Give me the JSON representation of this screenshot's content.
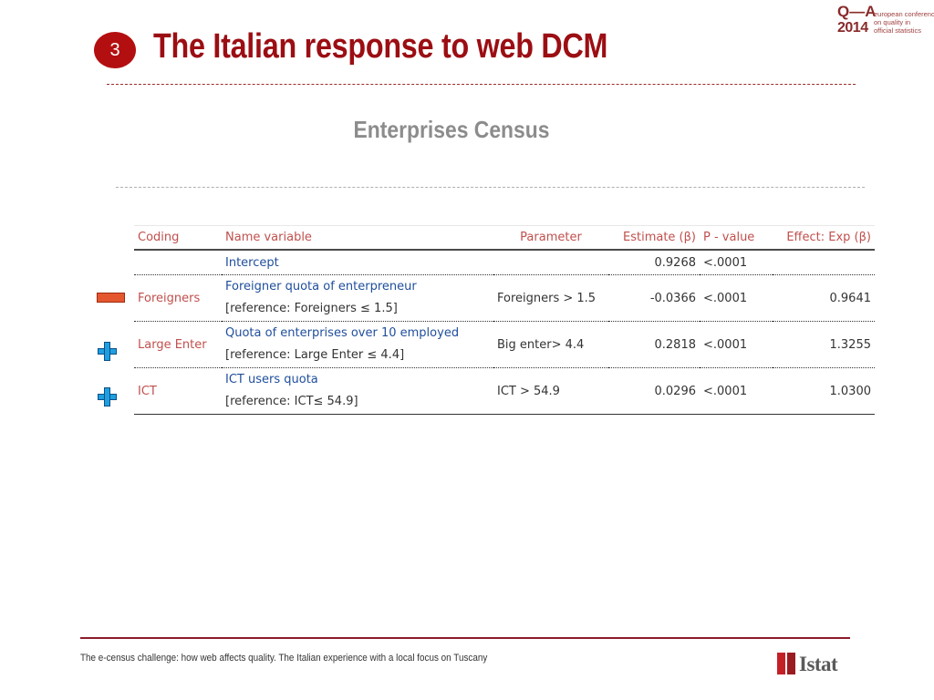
{
  "slide": {
    "number": "3",
    "title": "The Italian response to web DCM",
    "subtitle": "Enterprises Census"
  },
  "logo": {
    "qa": "Q—A",
    "year": "2014",
    "lines": [
      "european conference",
      "on quality in",
      "official statistics"
    ]
  },
  "table": {
    "headers": {
      "coding": "Coding",
      "name_variable": "Name variable",
      "parameter": "Parameter",
      "estimate": "Estimate (β)",
      "p_value": "P - value",
      "effect": "Effect: Exp (β)"
    },
    "rows": [
      {
        "coding": "",
        "name": "Intercept",
        "reference": "",
        "parameter": "",
        "estimate": "0.9268",
        "p_value": "<.0001",
        "effect": "",
        "sign": ""
      },
      {
        "coding": "Foreigners",
        "name": "Foreigner quota of enterpreneur",
        "reference": "[reference: Foreigners ≤ 1.5]",
        "parameter": "Foreigners > 1.5",
        "estimate": "-0.0366",
        "p_value": "<.0001",
        "effect": "0.9641",
        "sign": "minus"
      },
      {
        "coding": "Large Enter",
        "name": "Quota of enterprises over 10 employed",
        "reference": "[reference: Large Enter ≤ 4.4]",
        "parameter": "Big enter> 4.4",
        "estimate": "0.2818",
        "p_value": "<.0001",
        "effect": "1.3255",
        "sign": "plus"
      },
      {
        "coding": "ICT",
        "name": "ICT users quota",
        "reference": "[reference: ICT≤ 54.9]",
        "parameter": "ICT > 54.9",
        "estimate": "0.0296",
        "p_value": "<.0001",
        "effect": "1.0300",
        "sign": "plus"
      }
    ]
  },
  "footer": {
    "text": "The e-census challenge: how web affects quality. The Italian experience with a local focus on Tuscany",
    "brand": "Istat"
  },
  "colors": {
    "title": "#9b0e13",
    "badge": "#b40f10",
    "coding_text": "#c0504d",
    "variable_text": "#1f4e9c",
    "minus_marker": "#e4572e",
    "plus_marker": "#1f9fe0"
  }
}
